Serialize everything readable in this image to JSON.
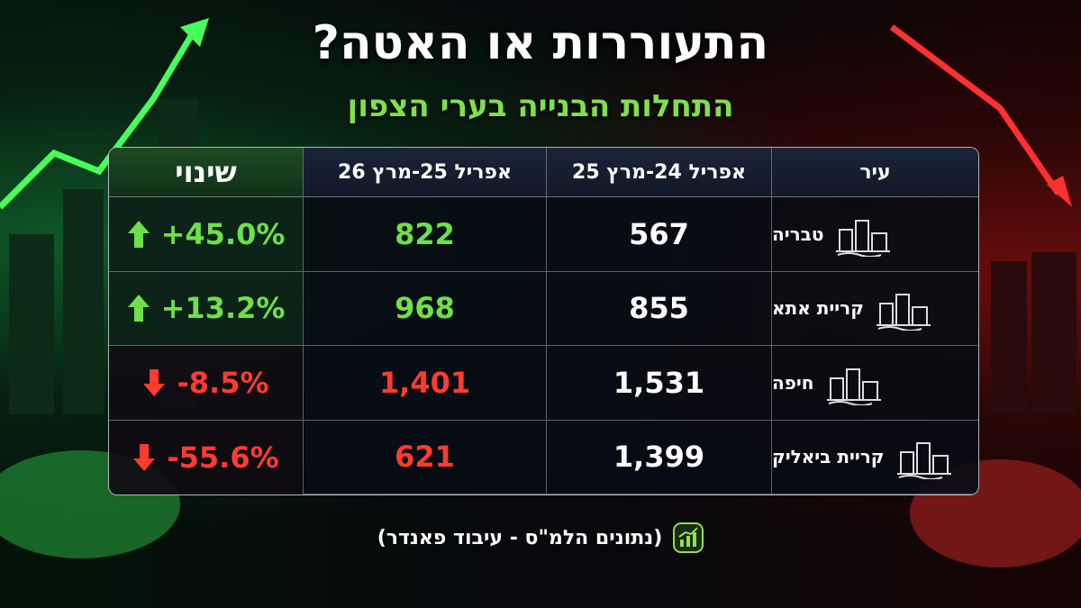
{
  "header": {
    "title": "התעוררות או האטה?",
    "subtitle": "התחלות הבנייה בערי הצפון"
  },
  "table": {
    "columns": [
      "עיר",
      "אפריל 24-מרץ 25",
      "אפריל 25-מרץ 26",
      "שינוי"
    ],
    "rows": [
      [
        "טבריה",
        "567",
        "822",
        "+45.0%"
      ],
      [
        "קריית אתא",
        "855",
        "968",
        "+13.2%"
      ],
      [
        "חיפה",
        "1,531",
        "1,401",
        "-8.5%"
      ],
      [
        "קריית ביאליק",
        "1,399",
        "621",
        "-55.6%"
      ]
    ]
  },
  "footer": {
    "source": "(נתונים הלמ\"ס - עיבוד פאנדר)"
  }
}
